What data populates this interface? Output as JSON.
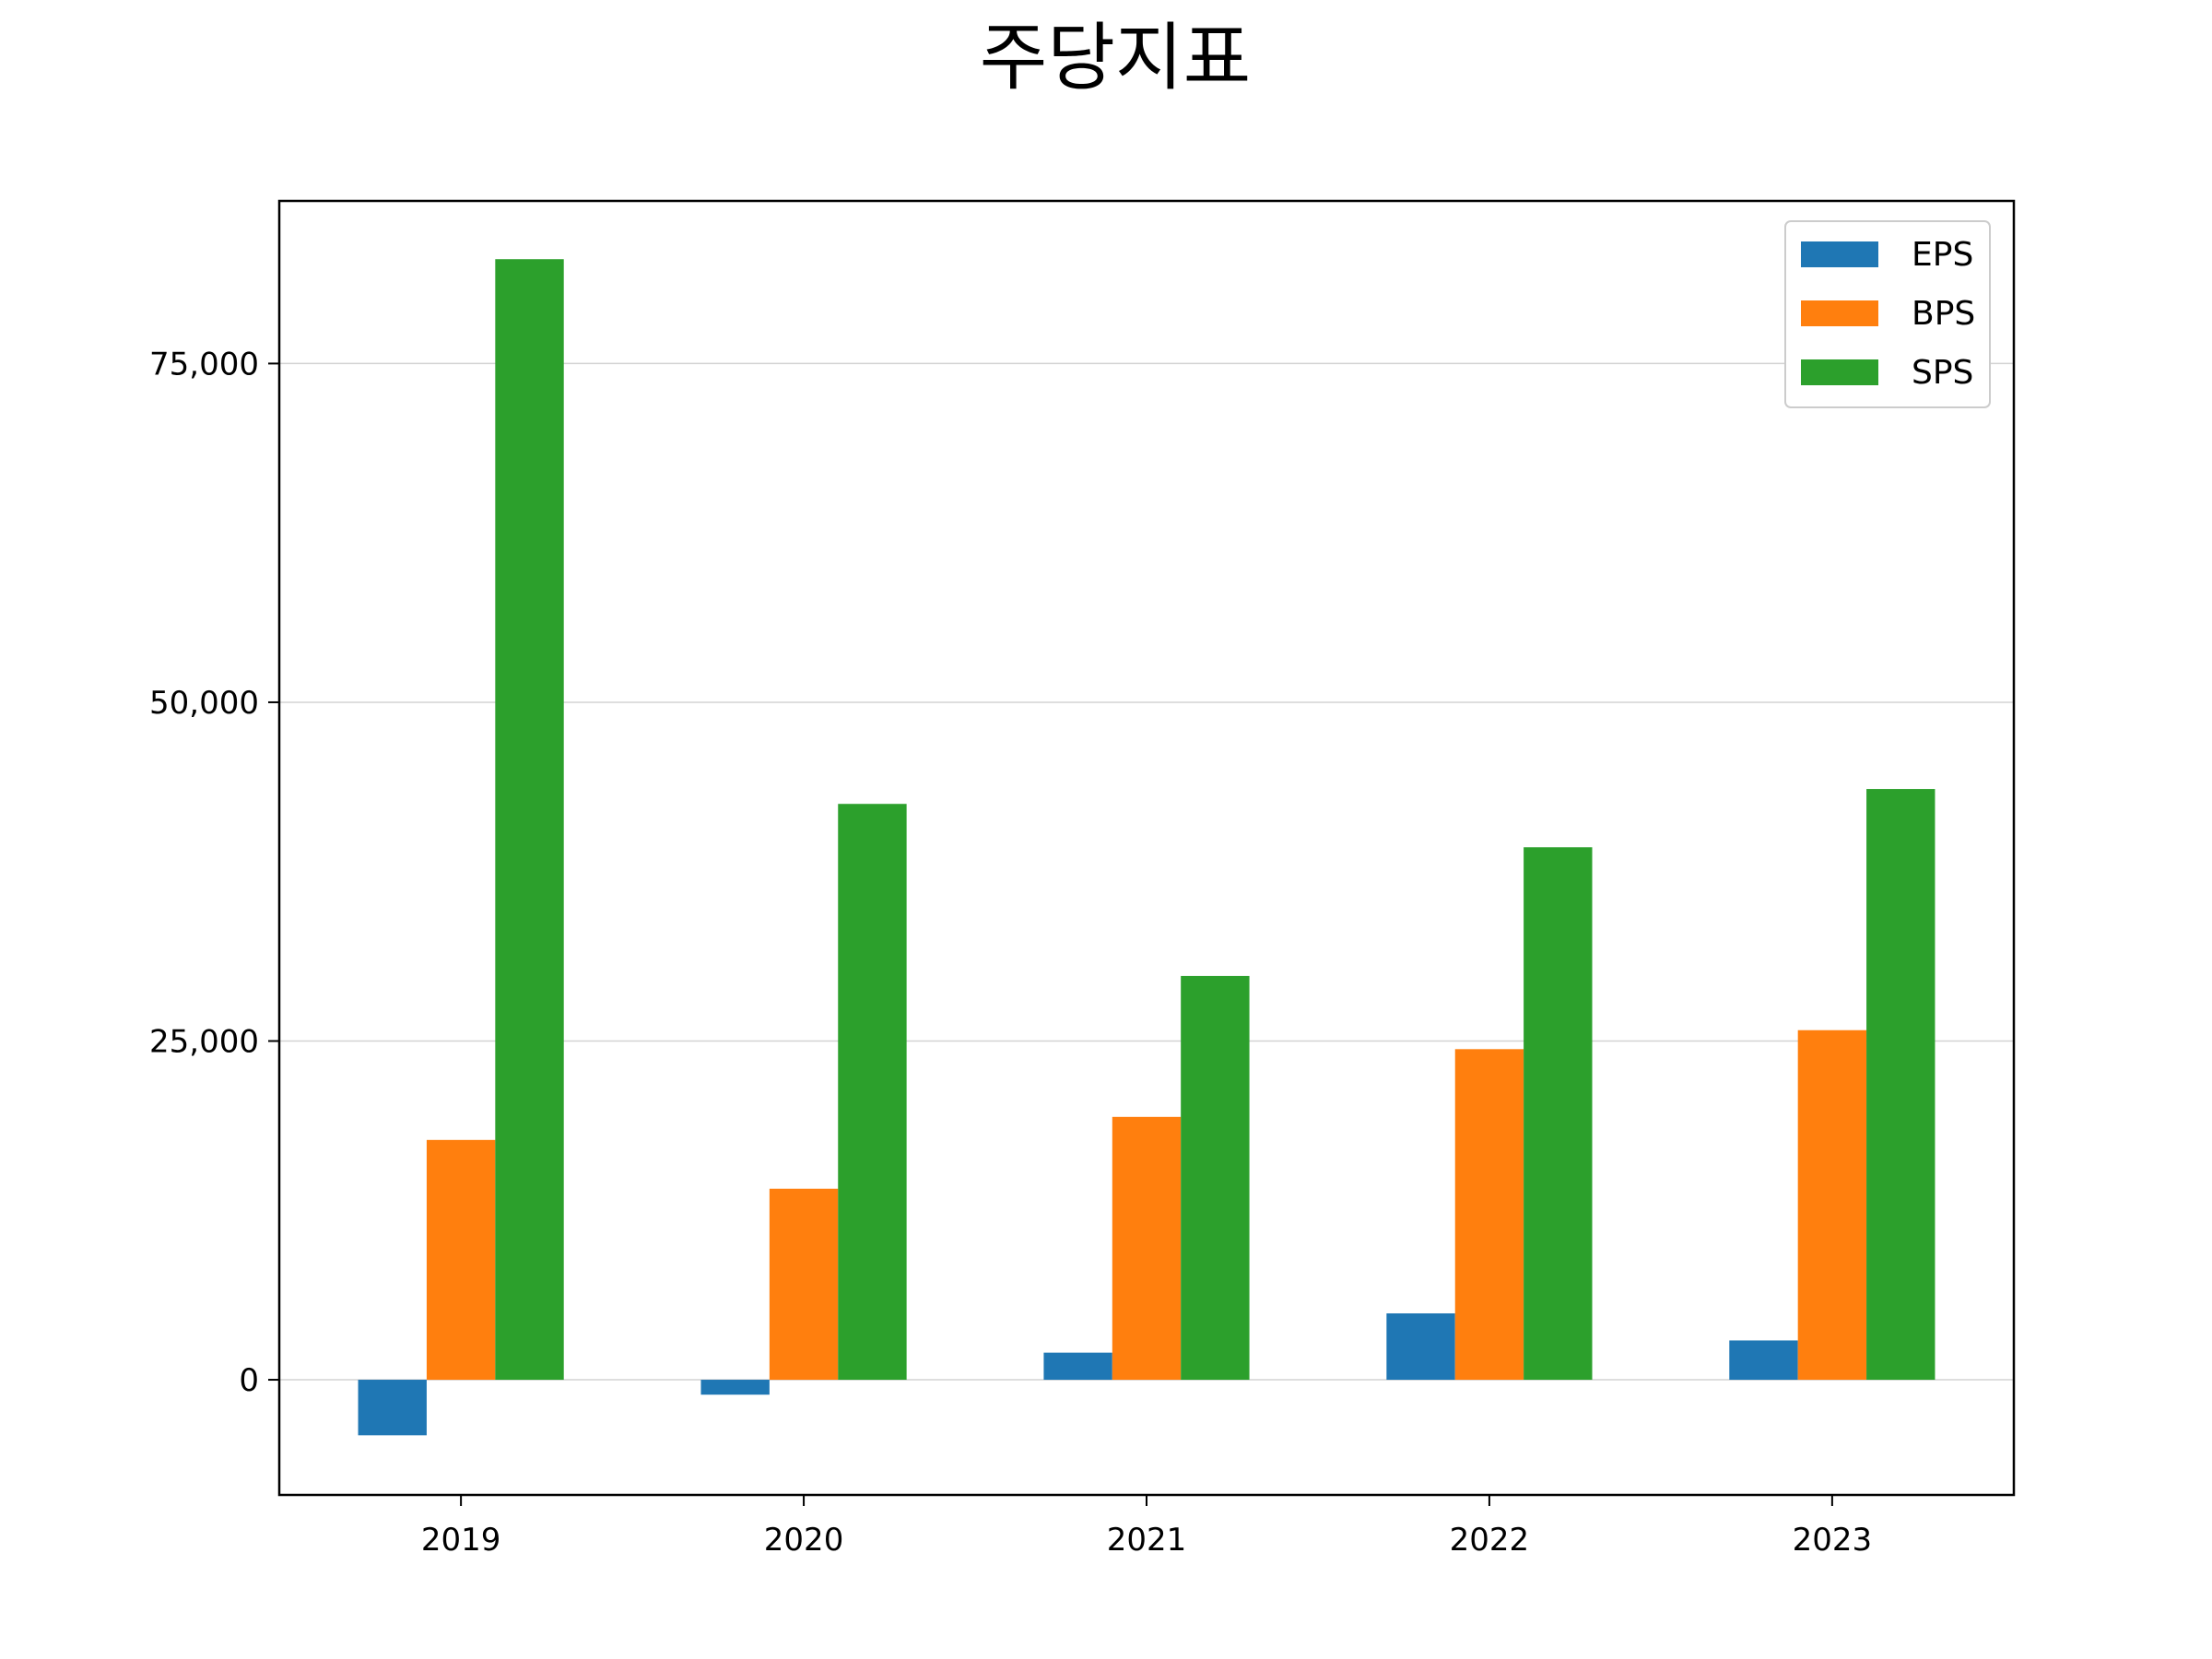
{
  "chart_data": {
    "type": "bar",
    "title": "주당지표",
    "xlabel": "",
    "ylabel": "",
    "categories": [
      "2019",
      "2020",
      "2021",
      "2022",
      "2023"
    ],
    "series": [
      {
        "name": "EPS",
        "color": "#1f77b4",
        "values": [
          -4100,
          -1100,
          2000,
          4900,
          2900
        ]
      },
      {
        "name": "BPS",
        "color": "#ff7f0e",
        "values": [
          17700,
          14100,
          19400,
          24400,
          25800
        ]
      },
      {
        "name": "SPS",
        "color": "#2ca02c",
        "values": [
          82700,
          42500,
          29800,
          39300,
          43600
        ]
      }
    ],
    "ylim": [
      -8500,
      87000
    ],
    "yticks": [
      0,
      25000,
      50000,
      75000
    ],
    "ytick_labels": [
      "0",
      "25,000",
      "50,000",
      "75,000"
    ],
    "grid": "y-horizontal",
    "legend_position": "top-right"
  }
}
